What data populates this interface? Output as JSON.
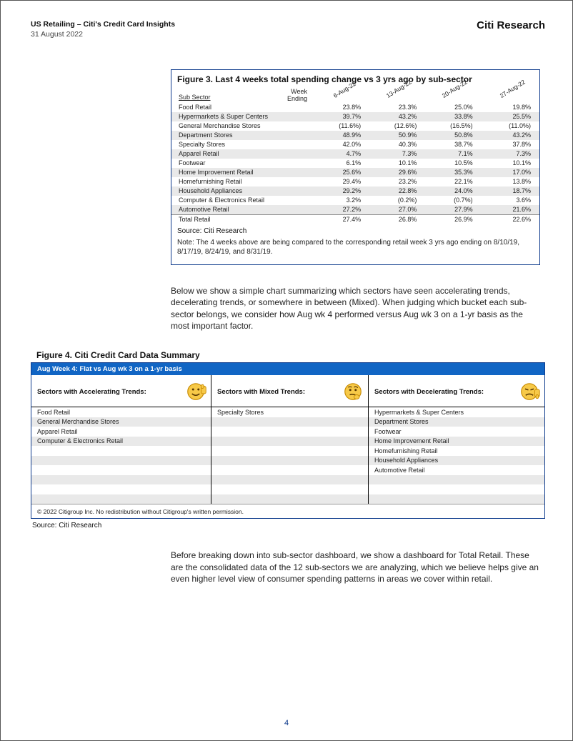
{
  "header": {
    "title": "US Retailing – Citi's Credit Card Insights",
    "date": "31 August 2022",
    "brand": "Citi Research"
  },
  "figure3": {
    "title": "Figure 3. Last 4 weeks total spending change vs 3 yrs ago by sub-sector",
    "col_header_left_line1": "Week",
    "col_header_left_line2": "Ending",
    "sub_sector_label": "Sub Sector",
    "date_headers": [
      "6-Aug-22",
      "13-Aug-22",
      "20-Aug-22",
      "27-Aug-22"
    ],
    "rows": [
      {
        "label": "Food Retail",
        "vals": [
          "23.8%",
          "23.3%",
          "25.0%",
          "19.8%"
        ],
        "shade": false
      },
      {
        "label": "Hypermarkets & Super Centers",
        "vals": [
          "39.7%",
          "43.2%",
          "33.8%",
          "25.5%"
        ],
        "shade": true
      },
      {
        "label": "General Merchandise Stores",
        "vals": [
          "(11.6%)",
          "(12.6%)",
          "(16.5%)",
          "(11.0%)"
        ],
        "shade": false
      },
      {
        "label": "Department Stores",
        "vals": [
          "48.9%",
          "50.9%",
          "50.8%",
          "43.2%"
        ],
        "shade": true
      },
      {
        "label": "Specialty Stores",
        "vals": [
          "42.0%",
          "40.3%",
          "38.7%",
          "37.8%"
        ],
        "shade": false
      },
      {
        "label": "Apparel Retail",
        "vals": [
          "4.7%",
          "7.3%",
          "7.1%",
          "7.3%"
        ],
        "shade": true
      },
      {
        "label": "Footwear",
        "vals": [
          "6.1%",
          "10.1%",
          "10.5%",
          "10.1%"
        ],
        "shade": false
      },
      {
        "label": "Home Improvement Retail",
        "vals": [
          "25.6%",
          "29.6%",
          "35.3%",
          "17.0%"
        ],
        "shade": true
      },
      {
        "label": "Homefurnishing Retail",
        "vals": [
          "29.4%",
          "23.2%",
          "22.1%",
          "13.8%"
        ],
        "shade": false
      },
      {
        "label": "Household Appliances",
        "vals": [
          "29.2%",
          "22.8%",
          "24.0%",
          "18.7%"
        ],
        "shade": true
      },
      {
        "label": "Computer & Electronics Retail",
        "vals": [
          "3.2%",
          "(0.2%)",
          "(0.7%)",
          "3.6%"
        ],
        "shade": false
      },
      {
        "label": "Automotive Retail",
        "vals": [
          "27.2%",
          "27.0%",
          "27.9%",
          "21.6%"
        ],
        "shade": true
      }
    ],
    "total_row": {
      "label": "Total Retail",
      "vals": [
        "27.4%",
        "26.8%",
        "26.9%",
        "22.6%"
      ]
    },
    "source": "Source: Citi Research",
    "note": "Note: The 4 weeks above are being compared to the corresponding retail week 3 yrs ago ending on 8/10/19, 8/17/19, 8/24/19, and 8/31/19."
  },
  "para1": "Below we show a simple chart summarizing which sectors have seen accelerating trends, decelerating trends, or somewhere in between (Mixed). When judging which bucket each sub-sector belongs, we consider how Aug wk 4 performed versus Aug wk 3 on a 1-yr basis as the most important factor.",
  "figure4": {
    "title": "Figure 4. Citi Credit Card Data Summary",
    "bluebar": "Aug Week 4: Flat vs Aug wk 3 on a 1-yr basis",
    "col_headers": [
      "Sectors with Accelerating Trends:",
      "Sectors with Mixed Trends:",
      "Sectors with Decelerating Trends:"
    ],
    "columns": [
      [
        "Food Retail",
        "General Merchandise Stores",
        "Apparel Retail",
        "Computer & Electronics Retail",
        "",
        "",
        "",
        "",
        "",
        ""
      ],
      [
        "Specialty Stores",
        "",
        "",
        "",
        "",
        "",
        "",
        "",
        "",
        ""
      ],
      [
        "Hypermarkets & Super Centers",
        "Department Stores",
        "Footwear",
        "Home Improvement Retail",
        "Homefurnishing Retail",
        "Household Appliances",
        "Automotive Retail",
        "",
        "",
        ""
      ]
    ],
    "row_shade": [
      false,
      true,
      false,
      true,
      false,
      true,
      false,
      true,
      false,
      true
    ],
    "copyright": "© 2022 Citigroup Inc. No redistribution without Citigroup's written permission.",
    "source": "Source: Citi Research"
  },
  "para2": "Before breaking down into sub-sector dashboard, we show a dashboard for Total Retail. These are the consolidated data of the 12 sub-sectors we are analyzing, which we believe helps give an even higher level view of consumer spending patterns in areas we cover within retail.",
  "page_number": "4",
  "colors": {
    "border_blue": "#0d3a8c",
    "bluebar": "#1165c4",
    "shade": "#e9e9e9",
    "emoji_face": "#f7c948",
    "emoji_outline": "#c78a00"
  }
}
